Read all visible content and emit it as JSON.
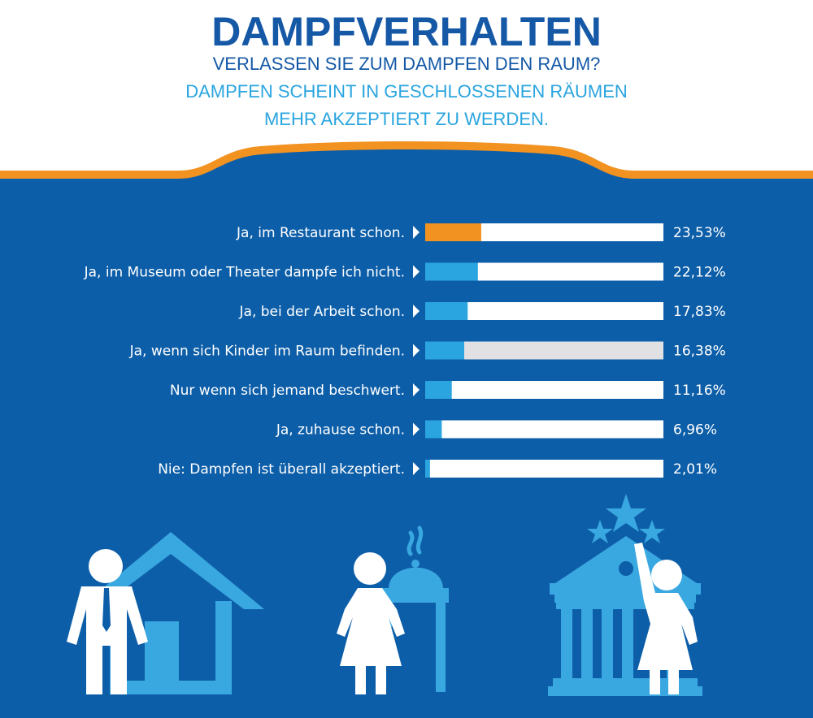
{
  "header": {
    "title": "DAMPFVERHALTEN",
    "subtitle": "VERLASSEN SIE ZUM DAMPFEN DEN RAUM?",
    "tagline_line1": "DAMPFEN SCHEINT IN GESCHLOSSENEN RÄUMEN",
    "tagline_line2": "MEHR AKZEPTIERT ZU WERDEN."
  },
  "colors": {
    "background_blue": "#0d5ea8",
    "orange_accent": "#f29220",
    "bar_blue": "#2aa5df",
    "bar_track": "#ffffff",
    "bar_track_alt": "#e1e1e3",
    "icon_light_blue": "#3aa8e0",
    "title_blue": "#1458a6"
  },
  "chart_data": {
    "type": "bar",
    "orientation": "horizontal",
    "title": "VERLASSEN SIE ZUM DAMPFEN DEN RAUM?",
    "categories": [
      "Ja, im Restaurant schon.",
      "Ja, im Museum oder Theater dampfe ich nicht.",
      "Ja, bei der Arbeit schon.",
      "Ja, wenn sich Kinder im Raum befinden.",
      "Nur wenn sich jemand beschwert.",
      "Ja, zuhause schon.",
      "Nie: Dampfen ist überall akzeptiert."
    ],
    "values": [
      23.53,
      22.12,
      17.83,
      16.38,
      11.16,
      6.96,
      2.01
    ],
    "value_labels": [
      "23,53%",
      "22,12%",
      "17,83%",
      "16,38%",
      "11,16%",
      "6,96%",
      "2,01%"
    ],
    "highlighted_index": 0,
    "ylim": [
      0,
      100
    ],
    "grid": false,
    "legend": "none"
  },
  "icons": [
    "businessman-icon",
    "house-icon",
    "waitress-icon",
    "serving-cloche-icon",
    "steam-icon",
    "stars-icon",
    "museum-icon",
    "woman-waving-icon"
  ]
}
